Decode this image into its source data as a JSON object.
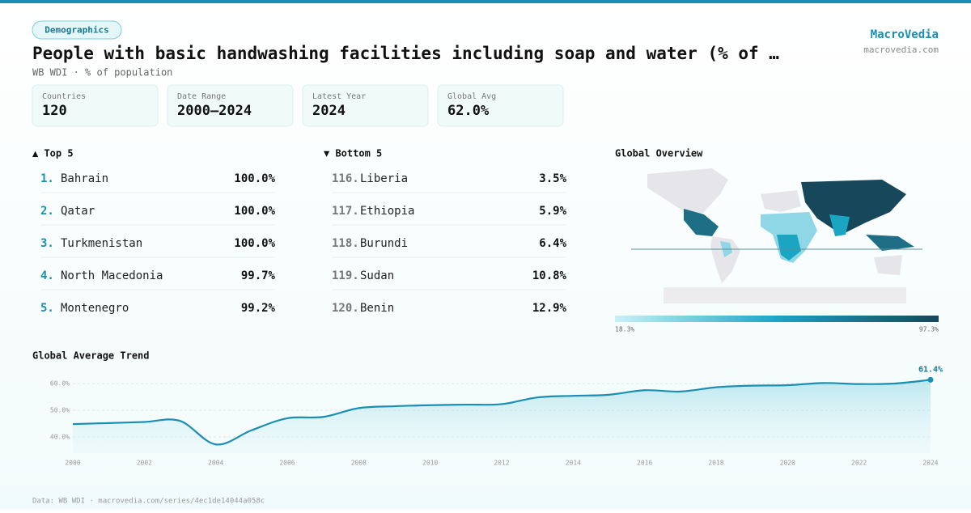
{
  "header": {
    "badge": "Demographics",
    "title": "People with basic handwashing facilities including soap and water (% of …",
    "subtitle": "WB WDI · % of population",
    "brand": "MacroVedia",
    "site": "macrovedia.com"
  },
  "stats": [
    {
      "label": "Countries",
      "value": "120"
    },
    {
      "label": "Date Range",
      "value": "2000–2024"
    },
    {
      "label": "Latest Year",
      "value": "2024"
    },
    {
      "label": "Global Avg",
      "value": "62.0%"
    }
  ],
  "top": {
    "title": "▲ Top 5",
    "rows": [
      {
        "rank": "1.",
        "name": "Bahrain",
        "value": "100.0%"
      },
      {
        "rank": "2.",
        "name": "Qatar",
        "value": "100.0%"
      },
      {
        "rank": "3.",
        "name": "Turkmenistan",
        "value": "100.0%"
      },
      {
        "rank": "4.",
        "name": "North Macedonia",
        "value": "99.7%"
      },
      {
        "rank": "5.",
        "name": "Montenegro",
        "value": "99.2%"
      }
    ]
  },
  "bottom": {
    "title": "▼ Bottom 5",
    "rows": [
      {
        "rank": "116.",
        "name": "Liberia",
        "value": "3.5%"
      },
      {
        "rank": "117.",
        "name": "Ethiopia",
        "value": "5.9%"
      },
      {
        "rank": "118.",
        "name": "Burundi",
        "value": "6.4%"
      },
      {
        "rank": "119.",
        "name": "Sudan",
        "value": "10.8%"
      },
      {
        "rank": "120.",
        "name": "Benin",
        "value": "12.9%"
      }
    ]
  },
  "map": {
    "title": "Global Overview",
    "legend_min": "18.3%",
    "legend_max": "97.3%"
  },
  "chart_data": {
    "type": "line",
    "title": "Global Average Trend",
    "color": "#1a8fb3",
    "x": [
      2000,
      2001,
      2002,
      2003,
      2004,
      2005,
      2006,
      2007,
      2008,
      2009,
      2010,
      2011,
      2012,
      2013,
      2014,
      2015,
      2016,
      2017,
      2018,
      2019,
      2020,
      2021,
      2022,
      2023,
      2024
    ],
    "values": [
      44.8,
      45.2,
      45.6,
      46.0,
      37.2,
      42.5,
      47.0,
      47.5,
      50.8,
      51.5,
      51.9,
      52.1,
      52.3,
      54.8,
      55.4,
      55.8,
      57.5,
      57.0,
      58.6,
      59.2,
      59.4,
      60.2,
      59.8,
      60.0,
      61.4
    ],
    "value_labels": [
      null,
      null,
      null,
      null,
      null,
      null,
      null,
      null,
      null,
      null,
      null,
      null,
      null,
      null,
      null,
      null,
      null,
      null,
      null,
      null,
      null,
      null,
      null,
      null,
      "61.4%"
    ],
    "xlim": [
      2000,
      2024
    ],
    "xticks": [
      2000,
      2002,
      2004,
      2006,
      2008,
      2010,
      2012,
      2014,
      2016,
      2018,
      2020,
      2022,
      2024
    ],
    "ylim": [
      34,
      66
    ],
    "yticks": [
      {
        "value": 40,
        "label": "40.0%"
      },
      {
        "value": 50,
        "label": "50.0%"
      },
      {
        "value": 60,
        "label": "60.0%"
      }
    ],
    "grid": true
  },
  "footer": "Data: WB WDI · macrovedia.com/series/4ec1de14044a058c"
}
